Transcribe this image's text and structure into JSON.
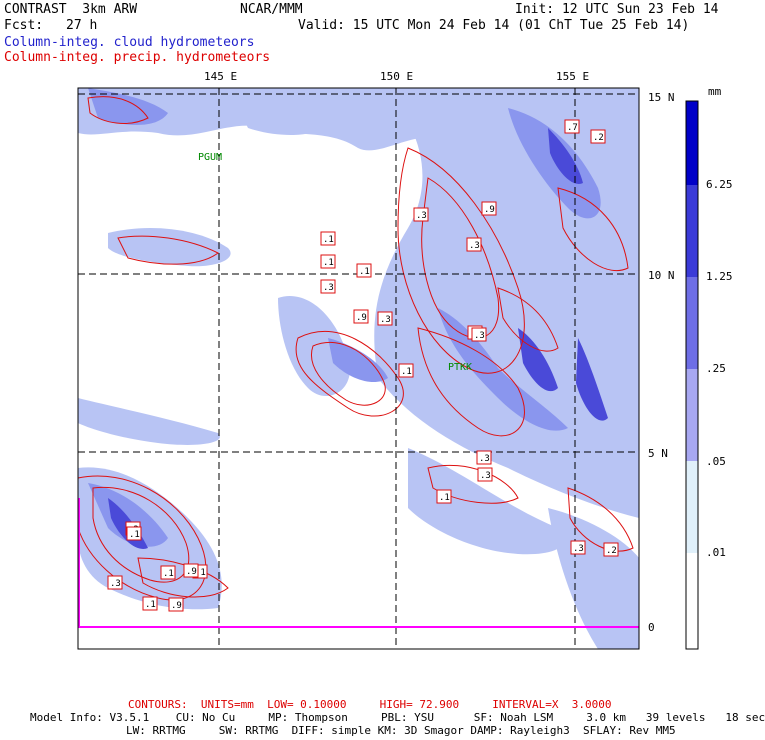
{
  "header": {
    "model": "CONTRAST  3km ARW",
    "org": "NCAR/MMM",
    "init": "Init: 12 UTC Sun 23 Feb 14",
    "fcst_label": "Fcst:",
    "fcst_value": "27 h",
    "valid": "Valid: 15 UTC Mon 24 Feb 14 (01 ChT Tue 25 Feb 14)",
    "field_cloud": "Column-integ. cloud hydrometeors",
    "field_precip": "Column-integ. precip. hydrometeors"
  },
  "map": {
    "lon_labels": [
      "145 E",
      "150 E",
      "155 E"
    ],
    "lat_labels": [
      "15 N",
      "10 N",
      "5 N",
      "0"
    ],
    "stations": [
      "PGUM",
      "PTKK"
    ],
    "contour_labels": [
      ".1",
      ".3",
      ".9",
      ".1",
      ".1",
      ".3",
      ".3",
      ".9",
      ".3",
      ".3",
      ".3",
      ".1",
      ".3",
      ".1",
      ".3",
      ".3",
      ".1",
      ".3",
      ".1",
      ".1",
      ".9",
      ".1",
      ".3",
      ".2",
      ".2",
      ".7",
      ".9"
    ],
    "colors": {
      "cloud_light": "#b8c4f4",
      "cloud_mid": "#8a96ee",
      "cloud_dark": "#4a4ad8",
      "precip_contour": "#dd1111",
      "station": "#008800"
    }
  },
  "colorbar": {
    "unit": "mm",
    "labels": [
      "6.25",
      "1.25",
      ".25",
      ".05",
      ".01"
    ],
    "colors": [
      "#0000c8",
      "#3a3ad8",
      "#6e6ee6",
      "#a8a8f2",
      "#e0f0fa",
      "#ffffff"
    ]
  },
  "footer": {
    "contours": "CONTOURS:  UNITS=mm  LOW= 0.10000     HIGH= 72.900     INTERVAL=X  3.0000",
    "model_info1": "Model Info: V3.5.1    CU: No Cu     MP: Thompson     PBL: YSU      SF: Noah LSM     3.0 km   39 levels   18 sec",
    "model_info2": "LW: RRTMG     SW: RRTMG  DIFF: simple KM: 3D Smagor DAMP: Rayleigh3  SFLAY: Rev MM5"
  }
}
